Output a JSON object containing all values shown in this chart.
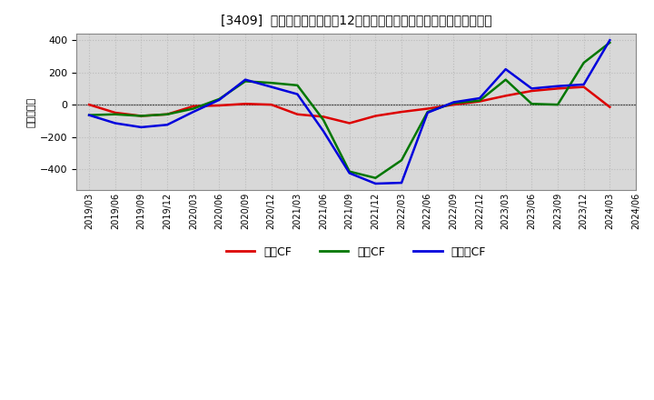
{
  "title": "[3409]  キャッシュフローの12か月移動合計の対前年同期増減額の推移",
  "ylabel": "（百万円）",
  "ylim": [
    -530,
    440
  ],
  "yticks": [
    -400,
    -200,
    0,
    200,
    400
  ],
  "plot_bg_color": "#d8d8d8",
  "fig_bg_color": "#ffffff",
  "grid_color": "#bbbbbb",
  "x_labels": [
    "2019/03",
    "2019/06",
    "2019/09",
    "2019/12",
    "2020/03",
    "2020/06",
    "2020/09",
    "2020/12",
    "2021/03",
    "2021/06",
    "2021/09",
    "2021/12",
    "2022/03",
    "2022/06",
    "2022/09",
    "2022/12",
    "2023/03",
    "2023/06",
    "2023/09",
    "2023/12",
    "2024/03",
    "2024/06"
  ],
  "series": {
    "営業CF": {
      "color": "#dd0000",
      "data": [
        0,
        -50,
        -70,
        -60,
        -10,
        -5,
        5,
        0,
        -60,
        -75,
        -115,
        -70,
        -45,
        -25,
        0,
        20,
        55,
        85,
        100,
        110,
        -15,
        null
      ]
    },
    "投資CF": {
      "color": "#007700",
      "data": [
        -65,
        -60,
        -70,
        -60,
        -25,
        35,
        145,
        135,
        120,
        -95,
        -415,
        -455,
        -345,
        -45,
        10,
        25,
        155,
        5,
        0,
        260,
        385,
        null
      ]
    },
    "フリーCF": {
      "color": "#0000dd",
      "data": [
        -65,
        -115,
        -140,
        -125,
        -45,
        30,
        155,
        110,
        65,
        -165,
        -425,
        -490,
        -485,
        -50,
        15,
        40,
        220,
        100,
        115,
        125,
        400,
        null
      ]
    }
  },
  "legend_labels": [
    "営業CF",
    "投資CF",
    "フリーCF"
  ],
  "legend_colors": [
    "#dd0000",
    "#007700",
    "#0000dd"
  ]
}
